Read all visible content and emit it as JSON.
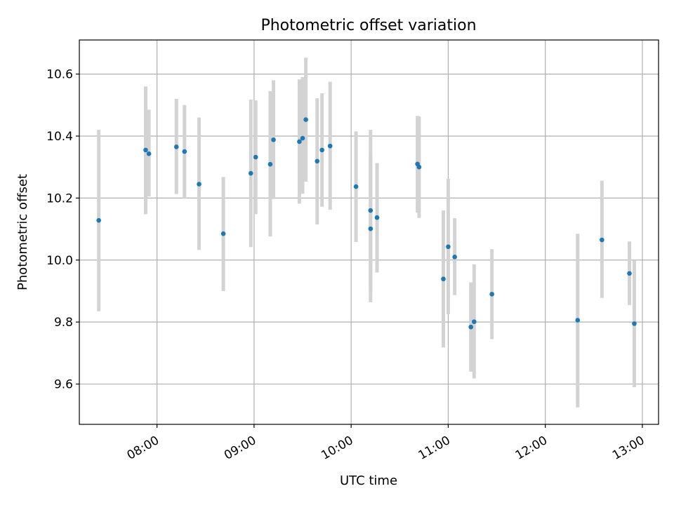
{
  "chart_data": {
    "type": "scatter",
    "title": "Photometric offset variation",
    "xlabel": "UTC time",
    "ylabel": "Photometric offset",
    "xlim": [
      "07:12",
      "13:10"
    ],
    "ylim": [
      9.47,
      10.71
    ],
    "x_ticks": [
      "08:00",
      "09:00",
      "10:00",
      "11:00",
      "12:00",
      "13:00"
    ],
    "y_ticks": [
      "9.6",
      "9.8",
      "10.0",
      "10.2",
      "10.4",
      "10.6"
    ],
    "grid": true,
    "colors": {
      "point": "#1f77b4",
      "errorbar": "#d3d3d3",
      "grid": "#b0b0b0"
    },
    "points": [
      {
        "x": "07:24",
        "y": 10.128,
        "err_low": 9.835,
        "err_high": 10.42
      },
      {
        "x": "07:53",
        "y": 10.355,
        "err_low": 10.148,
        "err_high": 10.56
      },
      {
        "x": "07:55",
        "y": 10.343,
        "err_low": 10.205,
        "err_high": 10.485
      },
      {
        "x": "08:12",
        "y": 10.365,
        "err_low": 10.213,
        "err_high": 10.52
      },
      {
        "x": "08:17",
        "y": 10.35,
        "err_low": 10.198,
        "err_high": 10.5
      },
      {
        "x": "08:26",
        "y": 10.245,
        "err_low": 10.033,
        "err_high": 10.46
      },
      {
        "x": "08:41",
        "y": 10.085,
        "err_low": 9.9,
        "err_high": 10.268
      },
      {
        "x": "08:58",
        "y": 10.28,
        "err_low": 10.042,
        "err_high": 10.518
      },
      {
        "x": "09:01",
        "y": 10.332,
        "err_low": 10.148,
        "err_high": 10.515
      },
      {
        "x": "09:10",
        "y": 10.309,
        "err_low": 10.076,
        "err_high": 10.545
      },
      {
        "x": "09:12",
        "y": 10.388,
        "err_low": 10.197,
        "err_high": 10.58
      },
      {
        "x": "09:28",
        "y": 10.382,
        "err_low": 10.182,
        "err_high": 10.583
      },
      {
        "x": "09:30",
        "y": 10.393,
        "err_low": 10.214,
        "err_high": 10.59
      },
      {
        "x": "09:32",
        "y": 10.453,
        "err_low": 10.253,
        "err_high": 10.653
      },
      {
        "x": "09:39",
        "y": 10.319,
        "err_low": 10.115,
        "err_high": 10.522
      },
      {
        "x": "09:42",
        "y": 10.355,
        "err_low": 10.172,
        "err_high": 10.538
      },
      {
        "x": "09:47",
        "y": 10.368,
        "err_low": 10.162,
        "err_high": 10.575
      },
      {
        "x": "10:03",
        "y": 10.237,
        "err_low": 10.058,
        "err_high": 10.415
      },
      {
        "x": "10:12",
        "y": 10.101,
        "err_low": 9.864,
        "err_high": 10.34
      },
      {
        "x": "10:12",
        "y": 10.16,
        "err_low": 9.9,
        "err_high": 10.42
      },
      {
        "x": "10:16",
        "y": 10.137,
        "err_low": 9.96,
        "err_high": 10.313
      },
      {
        "x": "10:41",
        "y": 10.31,
        "err_low": 10.153,
        "err_high": 10.465
      },
      {
        "x": "10:42",
        "y": 10.3,
        "err_low": 10.136,
        "err_high": 10.463
      },
      {
        "x": "10:57",
        "y": 9.939,
        "err_low": 9.718,
        "err_high": 10.16
      },
      {
        "x": "11:00",
        "y": 10.043,
        "err_low": 9.825,
        "err_high": 10.262
      },
      {
        "x": "11:04",
        "y": 10.01,
        "err_low": 9.887,
        "err_high": 10.135
      },
      {
        "x": "11:14",
        "y": 9.784,
        "err_low": 9.64,
        "err_high": 9.928
      },
      {
        "x": "11:16",
        "y": 9.801,
        "err_low": 9.618,
        "err_high": 9.986
      },
      {
        "x": "11:27",
        "y": 9.89,
        "err_low": 9.745,
        "err_high": 10.035
      },
      {
        "x": "12:20",
        "y": 9.806,
        "err_low": 9.525,
        "err_high": 10.085
      },
      {
        "x": "12:35",
        "y": 10.065,
        "err_low": 9.878,
        "err_high": 10.256
      },
      {
        "x": "12:52",
        "y": 9.957,
        "err_low": 9.855,
        "err_high": 10.06
      },
      {
        "x": "12:55",
        "y": 9.795,
        "err_low": 9.59,
        "err_high": 10.0
      }
    ]
  }
}
